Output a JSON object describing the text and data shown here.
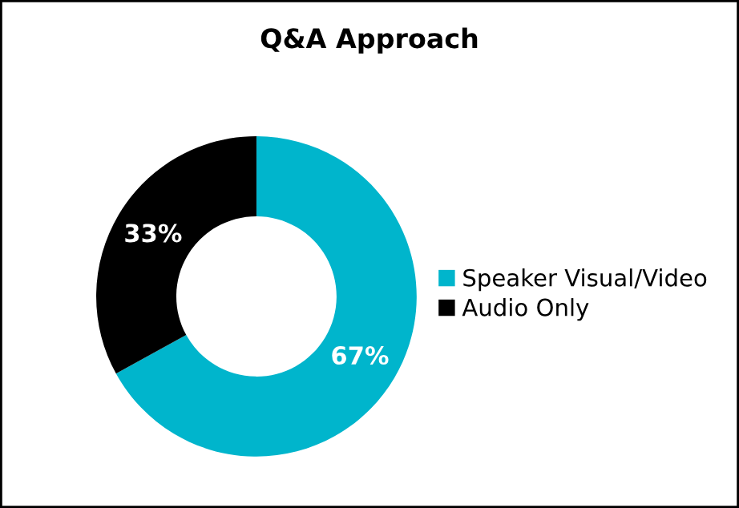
{
  "chart_data": {
    "type": "donut",
    "title": "Q&A Approach",
    "categories": [
      "Speaker Visual/Video",
      "Audio Only"
    ],
    "values": [
      67,
      33
    ],
    "colors": [
      "#00b5cc",
      "#000000"
    ],
    "value_labels": [
      "67%",
      "33%"
    ],
    "legend": "right"
  }
}
